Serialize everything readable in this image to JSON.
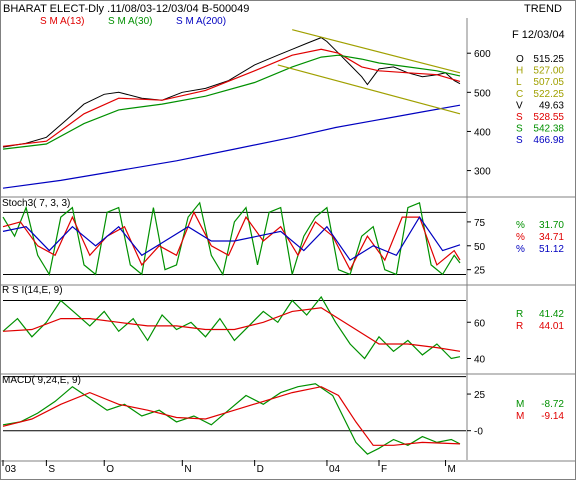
{
  "header": {
    "title": "BHARAT ELECT-Dly .11/08/03-12/03/04  B-500049",
    "trend": "TREND",
    "date": "F 12/03/04"
  },
  "colors": {
    "price": "#000000",
    "sma13": "#e00000",
    "sma30": "#009000",
    "sma200": "#0000c0",
    "trend_channel": "#a0a000",
    "grid": "#000000"
  },
  "chart_data": [
    {
      "type": "line",
      "panel": "price",
      "legend": [
        {
          "name": "S M A(13)",
          "color": "#e00000"
        },
        {
          "name": "S M A(30)",
          "color": "#009000"
        },
        {
          "name": "S M A(200)",
          "color": "#0000c0"
        }
      ],
      "y_ticks": [
        "600",
        "500",
        "400",
        "300"
      ],
      "ylim": [
        235,
        690
      ],
      "x_ticks": [
        "03",
        "S",
        "O",
        "N",
        "D",
        "04",
        "F",
        "M"
      ],
      "x_tick_days": [
        0,
        15,
        35,
        62,
        87,
        112,
        130,
        153
      ],
      "x_range": [
        0,
        158
      ],
      "readout": [
        {
          "label": "O",
          "value": "515.25",
          "color": "#000000"
        },
        {
          "label": "H",
          "value": "527.00",
          "color": "#a0a000"
        },
        {
          "label": "L",
          "value": "507.05",
          "color": "#a0a000"
        },
        {
          "label": "C",
          "value": "522.25",
          "color": "#a0a000"
        },
        {
          "label": "V",
          "value": "49.63",
          "color": "#000000"
        },
        {
          "label": "S",
          "value": "528.55",
          "color": "#e00000"
        },
        {
          "label": "S",
          "value": "542.38",
          "color": "#009000"
        },
        {
          "label": "S",
          "value": "466.98",
          "color": "#0000c0"
        }
      ],
      "series": [
        {
          "name": "Close",
          "x": [
            0,
            8,
            15,
            22,
            28,
            35,
            40,
            48,
            55,
            62,
            70,
            78,
            87,
            95,
            100,
            105,
            110,
            112,
            116,
            120,
            124,
            126,
            130,
            135,
            140,
            145,
            150,
            153,
            156,
            158
          ],
          "values": [
            360,
            370,
            385,
            430,
            470,
            495,
            500,
            485,
            480,
            500,
            510,
            530,
            570,
            595,
            610,
            625,
            640,
            630,
            600,
            570,
            540,
            520,
            560,
            565,
            550,
            540,
            545,
            550,
            530,
            522
          ]
        },
        {
          "name": "S M A(13)",
          "x": [
            0,
            15,
            28,
            40,
            55,
            70,
            87,
            100,
            110,
            116,
            124,
            130,
            140,
            150,
            158
          ],
          "values": [
            362,
            375,
            445,
            485,
            480,
            505,
            555,
            595,
            610,
            600,
            565,
            555,
            550,
            545,
            528
          ]
        },
        {
          "name": "S M A(30)",
          "x": [
            0,
            15,
            28,
            40,
            55,
            70,
            87,
            100,
            110,
            116,
            124,
            130,
            140,
            150,
            158
          ],
          "values": [
            355,
            368,
            420,
            455,
            470,
            490,
            525,
            565,
            590,
            595,
            585,
            575,
            565,
            555,
            542
          ]
        },
        {
          "name": "S M A(200)",
          "x": [
            0,
            20,
            40,
            60,
            80,
            100,
            115,
            130,
            145,
            158
          ],
          "values": [
            255,
            275,
            300,
            325,
            355,
            385,
            410,
            430,
            450,
            467
          ]
        },
        {
          "name": "Trend channel upper",
          "x": [
            100,
            158
          ],
          "values": [
            660,
            550
          ]
        },
        {
          "name": "Trend channel lower",
          "x": [
            95,
            158
          ],
          "values": [
            570,
            445
          ]
        }
      ]
    },
    {
      "type": "line",
      "panel": "stochastic",
      "label": "Stoch3( 7, 3, 3)",
      "y_ticks": [
        "75",
        "50",
        "25"
      ],
      "ylim": [
        10,
        100
      ],
      "hlines": [
        85,
        20
      ],
      "readout": [
        {
          "label": "%",
          "value": "31.70",
          "color": "#009000"
        },
        {
          "label": "%",
          "value": "34.71",
          "color": "#e00000"
        },
        {
          "label": "%",
          "value": "51.12",
          "color": "#0000c0"
        }
      ],
      "series": [
        {
          "name": "%K",
          "x": [
            0,
            4,
            8,
            12,
            16,
            20,
            24,
            28,
            32,
            36,
            40,
            44,
            48,
            52,
            56,
            60,
            64,
            68,
            72,
            76,
            80,
            84,
            88,
            92,
            96,
            100,
            104,
            108,
            112,
            116,
            120,
            124,
            128,
            132,
            136,
            140,
            144,
            148,
            152,
            156,
            158
          ],
          "values": [
            80,
            60,
            90,
            40,
            20,
            80,
            90,
            30,
            20,
            85,
            90,
            30,
            20,
            90,
            25,
            30,
            80,
            95,
            40,
            20,
            75,
            90,
            30,
            85,
            90,
            20,
            60,
            80,
            90,
            25,
            20,
            60,
            70,
            25,
            20,
            90,
            95,
            30,
            20,
            40,
            32
          ]
        },
        {
          "name": "%D",
          "x": [
            0,
            6,
            12,
            18,
            24,
            30,
            36,
            42,
            48,
            54,
            60,
            66,
            72,
            78,
            84,
            90,
            96,
            102,
            108,
            114,
            120,
            126,
            132,
            138,
            144,
            150,
            156,
            158
          ],
          "values": [
            70,
            75,
            50,
            40,
            80,
            40,
            60,
            70,
            30,
            50,
            40,
            85,
            50,
            40,
            80,
            55,
            70,
            40,
            75,
            60,
            25,
            60,
            35,
            80,
            80,
            30,
            45,
            35
          ]
        },
        {
          "name": "%Slow",
          "x": [
            0,
            8,
            16,
            24,
            32,
            40,
            48,
            56,
            64,
            72,
            80,
            88,
            96,
            104,
            112,
            120,
            128,
            136,
            144,
            152,
            158
          ],
          "values": [
            65,
            70,
            45,
            70,
            50,
            70,
            40,
            55,
            70,
            55,
            55,
            60,
            65,
            45,
            70,
            35,
            50,
            40,
            80,
            45,
            51
          ]
        }
      ]
    },
    {
      "type": "line",
      "panel": "rsi",
      "label": "R S I(14,E, 9)",
      "y_ticks": [
        "60",
        "40"
      ],
      "ylim": [
        32,
        80
      ],
      "hlines": [
        72,
        30
      ],
      "readout": [
        {
          "label": "R",
          "value": "41.42",
          "color": "#009000"
        },
        {
          "label": "R",
          "value": "44.01",
          "color": "#e00000"
        }
      ],
      "series": [
        {
          "name": "RSI",
          "x": [
            0,
            5,
            10,
            15,
            20,
            25,
            30,
            35,
            40,
            45,
            50,
            55,
            60,
            65,
            70,
            75,
            80,
            85,
            90,
            95,
            100,
            105,
            110,
            115,
            120,
            125,
            130,
            135,
            140,
            145,
            150,
            155,
            158
          ],
          "values": [
            55,
            62,
            52,
            60,
            72,
            65,
            58,
            66,
            55,
            62,
            50,
            64,
            56,
            60,
            52,
            62,
            50,
            58,
            66,
            60,
            72,
            64,
            74,
            60,
            48,
            40,
            52,
            44,
            50,
            42,
            48,
            40,
            41
          ]
        },
        {
          "name": "Signal",
          "x": [
            0,
            10,
            20,
            30,
            40,
            50,
            60,
            70,
            80,
            90,
            100,
            110,
            120,
            130,
            140,
            150,
            158
          ],
          "values": [
            55,
            56,
            62,
            62,
            60,
            58,
            58,
            56,
            56,
            60,
            66,
            68,
            58,
            48,
            48,
            46,
            44
          ]
        }
      ]
    },
    {
      "type": "line",
      "panel": "macd",
      "label": "MACD( 9,24,E, 9)",
      "y_ticks": [
        "25",
        "-0"
      ],
      "ylim": [
        -20,
        38
      ],
      "hlines": [
        0
      ],
      "readout": [
        {
          "label": "M",
          "value": "-8.72",
          "color": "#009000"
        },
        {
          "label": "M",
          "value": "-9.14",
          "color": "#e00000"
        }
      ],
      "series": [
        {
          "name": "MACD",
          "x": [
            0,
            6,
            12,
            18,
            24,
            30,
            36,
            42,
            48,
            54,
            60,
            66,
            72,
            78,
            84,
            90,
            96,
            102,
            108,
            114,
            118,
            122,
            126,
            130,
            135,
            140,
            145,
            150,
            155,
            158
          ],
          "values": [
            4,
            6,
            12,
            20,
            30,
            22,
            14,
            18,
            10,
            14,
            6,
            10,
            4,
            14,
            24,
            18,
            26,
            30,
            32,
            24,
            8,
            -8,
            -16,
            -12,
            -6,
            -10,
            -4,
            -8,
            -6,
            -9
          ]
        },
        {
          "name": "Signal",
          "x": [
            0,
            10,
            20,
            30,
            40,
            50,
            60,
            70,
            80,
            90,
            100,
            110,
            116,
            122,
            128,
            135,
            145,
            158
          ],
          "values": [
            3,
            8,
            18,
            26,
            18,
            14,
            9,
            8,
            14,
            20,
            26,
            30,
            24,
            6,
            -10,
            -10,
            -8,
            -9
          ]
        }
      ]
    }
  ]
}
